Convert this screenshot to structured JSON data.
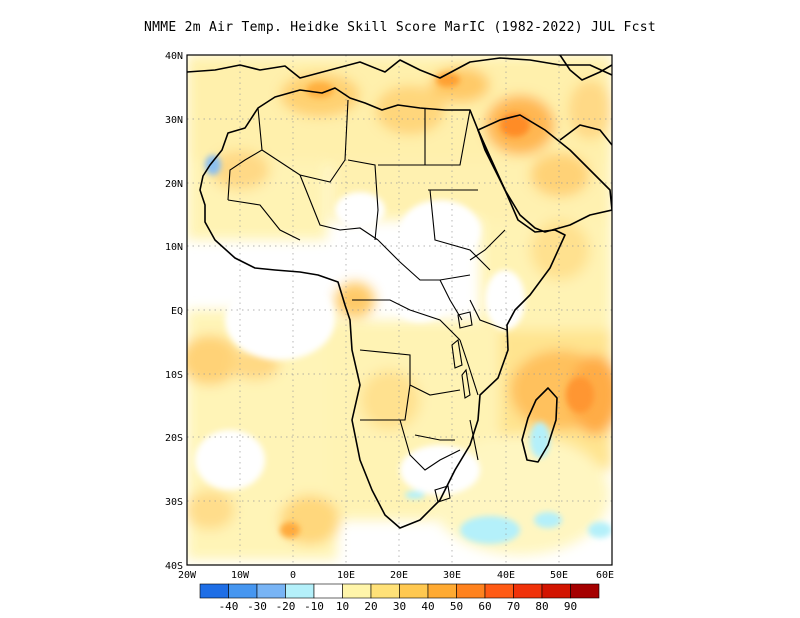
{
  "title": "NMME  2m Air Temp. Heidke Skill Score MarIC (1982-2022) JUL Fcst",
  "map": {
    "region": "Africa",
    "lon_range": [
      -20,
      60
    ],
    "lat_range": [
      -40,
      40
    ],
    "grid": "dotted",
    "lat_labels": [
      "40N",
      "30N",
      "20N",
      "10N",
      "EQ",
      "10S",
      "20S",
      "30S",
      "40S"
    ],
    "lon_labels": [
      "20W",
      "10W",
      "0",
      "10E",
      "20E",
      "30E",
      "40E",
      "50E",
      "60E"
    ]
  },
  "colorbar": {
    "colors": [
      "#1e6ee6",
      "#4696f0",
      "#78b4f5",
      "#b4f0fa",
      "#ffffff",
      "#fff5aa",
      "#ffe178",
      "#ffc850",
      "#ffaa32",
      "#ff821e",
      "#ff5a14",
      "#f0320a",
      "#d21400",
      "#a50000"
    ],
    "labels": [
      "-40",
      "-30",
      "-20",
      "-10",
      "10",
      "20",
      "30",
      "40",
      "50",
      "60",
      "70",
      "80",
      "90"
    ]
  }
}
